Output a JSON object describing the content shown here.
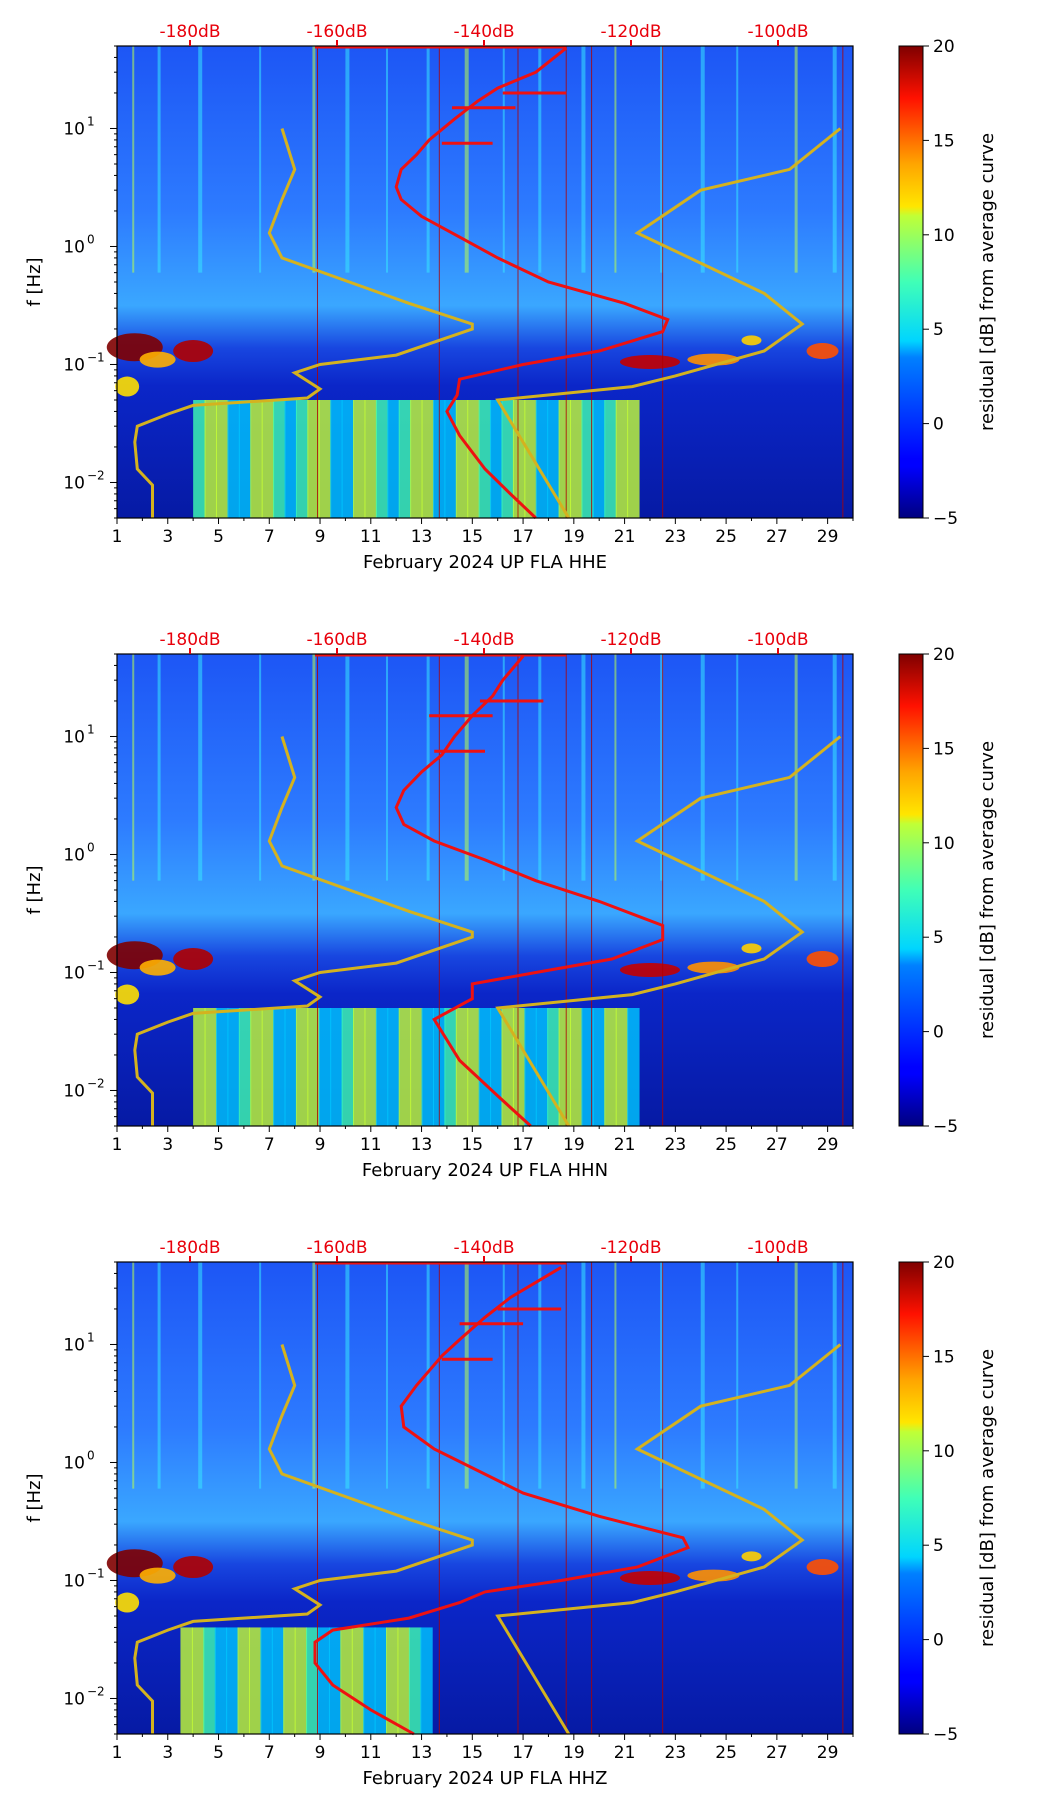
{
  "chart_data": [
    {
      "type": "heatmap",
      "channel": "HHE",
      "xlabel": "February 2024 UP FLA  HHE",
      "ylabel": "f [Hz]",
      "x_ticks": [
        "1",
        "3",
        "5",
        "7",
        "9",
        "11",
        "13",
        "15",
        "17",
        "19",
        "21",
        "23",
        "25",
        "27",
        "29"
      ],
      "x_range": [
        1,
        30
      ],
      "y_ticks": [
        {
          "exp": -2,
          "label": "10",
          "sup": "−2"
        },
        {
          "exp": -1,
          "label": "10",
          "sup": "−1"
        },
        {
          "exp": 0,
          "label": "10",
          "sup": "0"
        },
        {
          "exp": 1,
          "label": "10",
          "sup": "1"
        }
      ],
      "y_range_hz": [
        0.005,
        50
      ],
      "top_axis_ticks": [
        "-180dB",
        "-160dB",
        "-140dB",
        "-120dB",
        "-100dB"
      ],
      "colorbar": {
        "label": "residual [dB] from average curve",
        "range": [
          -5,
          20
        ],
        "ticks": [
          "20",
          "15",
          "10",
          "5",
          "0",
          "−5"
        ]
      },
      "yellow_noise_model": [
        [
          2.4,
          0.005
        ],
        [
          2.4,
          0.0095
        ],
        [
          1.8,
          0.013
        ],
        [
          1.7,
          0.022
        ],
        [
          1.8,
          0.03
        ],
        [
          3,
          0.038
        ],
        [
          4,
          0.045
        ],
        [
          8.5,
          0.052
        ],
        [
          9,
          0.062
        ],
        [
          8,
          0.085
        ],
        [
          9,
          0.1
        ],
        [
          12,
          0.12
        ],
        [
          15,
          0.2
        ],
        [
          15,
          0.22
        ],
        [
          12.5,
          0.33
        ],
        [
          7.5,
          0.8
        ],
        [
          7,
          1.3
        ],
        [
          7.5,
          2.5
        ],
        [
          8,
          4.5
        ],
        [
          7.5,
          10
        ]
      ],
      "yellow_noise_model_2": [
        [
          18.8,
          0.005
        ],
        [
          16,
          0.05
        ],
        [
          21.3,
          0.065
        ],
        [
          23,
          0.08
        ],
        [
          26.5,
          0.13
        ],
        [
          28,
          0.22
        ],
        [
          26.5,
          0.4
        ],
        [
          21.5,
          1.3
        ],
        [
          24,
          3
        ],
        [
          27.5,
          4.5
        ],
        [
          29.5,
          10
        ]
      ],
      "red_psd_curve": [
        [
          17.5,
          0.005
        ],
        [
          16.5,
          0.008
        ],
        [
          15.5,
          0.013
        ],
        [
          14.5,
          0.025
        ],
        [
          14,
          0.04
        ],
        [
          14.4,
          0.055
        ],
        [
          14.5,
          0.075
        ],
        [
          17,
          0.1
        ],
        [
          20,
          0.13
        ],
        [
          22.5,
          0.19
        ],
        [
          22.7,
          0.24
        ],
        [
          21,
          0.33
        ],
        [
          18,
          0.5
        ],
        [
          16,
          0.8
        ],
        [
          14.5,
          1.2
        ],
        [
          13,
          1.8
        ],
        [
          12.2,
          2.5
        ],
        [
          12,
          3.2
        ],
        [
          12.2,
          4.5
        ],
        [
          12.8,
          6
        ],
        [
          13.3,
          8
        ],
        [
          14.3,
          12
        ],
        [
          15.2,
          17
        ],
        [
          16,
          22
        ],
        [
          17.5,
          30
        ],
        [
          18.7,
          48
        ]
      ],
      "red_spikes": [
        [
          15.8,
          7.5
        ],
        [
          16.7,
          15
        ],
        [
          18.7,
          20
        ]
      ]
    },
    {
      "type": "heatmap",
      "channel": "HHN",
      "xlabel": "February 2024 UP FLA  HHN",
      "ylabel": "f [Hz]",
      "x_ticks": [
        "1",
        "3",
        "5",
        "7",
        "9",
        "11",
        "13",
        "15",
        "17",
        "19",
        "21",
        "23",
        "25",
        "27",
        "29"
      ],
      "x_range": [
        1,
        30
      ],
      "y_ticks": [
        {
          "exp": -2,
          "label": "10",
          "sup": "−2"
        },
        {
          "exp": -1,
          "label": "10",
          "sup": "−1"
        },
        {
          "exp": 0,
          "label": "10",
          "sup": "0"
        },
        {
          "exp": 1,
          "label": "10",
          "sup": "1"
        }
      ],
      "y_range_hz": [
        0.005,
        50
      ],
      "top_axis_ticks": [
        "-180dB",
        "-160dB",
        "-140dB",
        "-120dB",
        "-100dB"
      ],
      "colorbar": {
        "label": "residual [dB] from average curve",
        "range": [
          -5,
          20
        ],
        "ticks": [
          "20",
          "15",
          "10",
          "5",
          "0",
          "−5"
        ]
      },
      "yellow_noise_model": [
        [
          2.4,
          0.005
        ],
        [
          2.4,
          0.0095
        ],
        [
          1.8,
          0.013
        ],
        [
          1.7,
          0.022
        ],
        [
          1.8,
          0.03
        ],
        [
          3,
          0.038
        ],
        [
          4,
          0.045
        ],
        [
          8.5,
          0.052
        ],
        [
          9,
          0.062
        ],
        [
          8,
          0.085
        ],
        [
          9,
          0.1
        ],
        [
          12,
          0.12
        ],
        [
          15,
          0.2
        ],
        [
          15,
          0.22
        ],
        [
          12.5,
          0.33
        ],
        [
          7.5,
          0.8
        ],
        [
          7,
          1.3
        ],
        [
          7.5,
          2.5
        ],
        [
          8,
          4.5
        ],
        [
          7.5,
          10
        ]
      ],
      "yellow_noise_model_2": [
        [
          18.8,
          0.005
        ],
        [
          16,
          0.05
        ],
        [
          21.3,
          0.065
        ],
        [
          23,
          0.08
        ],
        [
          26.5,
          0.13
        ],
        [
          28,
          0.22
        ],
        [
          26.5,
          0.4
        ],
        [
          21.5,
          1.3
        ],
        [
          24,
          3
        ],
        [
          27.5,
          4.5
        ],
        [
          29.5,
          10
        ]
      ],
      "red_psd_curve": [
        [
          17.3,
          0.005
        ],
        [
          16,
          0.009
        ],
        [
          14.5,
          0.018
        ],
        [
          13.5,
          0.04
        ],
        [
          15,
          0.06
        ],
        [
          15,
          0.08
        ],
        [
          17.5,
          0.1
        ],
        [
          20.5,
          0.13
        ],
        [
          22.5,
          0.19
        ],
        [
          22.5,
          0.25
        ],
        [
          20,
          0.4
        ],
        [
          17.5,
          0.6
        ],
        [
          15.5,
          0.9
        ],
        [
          13.5,
          1.3
        ],
        [
          12.3,
          1.8
        ],
        [
          12,
          2.5
        ],
        [
          12.3,
          3.5
        ],
        [
          13,
          5
        ],
        [
          13.8,
          7
        ],
        [
          14.3,
          10
        ],
        [
          15,
          15
        ],
        [
          15.8,
          22
        ],
        [
          16.2,
          30
        ],
        [
          17,
          48
        ]
      ],
      "red_spikes": [
        [
          15.5,
          7.5
        ],
        [
          15.8,
          15
        ],
        [
          17.8,
          20
        ]
      ]
    },
    {
      "type": "heatmap",
      "channel": "HHZ",
      "xlabel": "February 2024 UP FLA  HHZ",
      "ylabel": "f [Hz]",
      "x_ticks": [
        "1",
        "3",
        "5",
        "7",
        "9",
        "11",
        "13",
        "15",
        "17",
        "19",
        "21",
        "23",
        "25",
        "27",
        "29"
      ],
      "x_range": [
        1,
        30
      ],
      "y_ticks": [
        {
          "exp": -2,
          "label": "10",
          "sup": "−2"
        },
        {
          "exp": -1,
          "label": "10",
          "sup": "−1"
        },
        {
          "exp": 0,
          "label": "10",
          "sup": "0"
        },
        {
          "exp": 1,
          "label": "10",
          "sup": "1"
        }
      ],
      "y_range_hz": [
        0.005,
        50
      ],
      "top_axis_ticks": [
        "-180dB",
        "-160dB",
        "-140dB",
        "-120dB",
        "-100dB"
      ],
      "colorbar": {
        "label": "residual [dB] from average curve",
        "range": [
          -5,
          20
        ],
        "ticks": [
          "20",
          "15",
          "10",
          "5",
          "0",
          "−5"
        ]
      },
      "yellow_noise_model": [
        [
          2.4,
          0.005
        ],
        [
          2.4,
          0.0095
        ],
        [
          1.8,
          0.013
        ],
        [
          1.7,
          0.022
        ],
        [
          1.8,
          0.03
        ],
        [
          3,
          0.038
        ],
        [
          4,
          0.045
        ],
        [
          8.5,
          0.052
        ],
        [
          9,
          0.062
        ],
        [
          8,
          0.085
        ],
        [
          9,
          0.1
        ],
        [
          12,
          0.12
        ],
        [
          15,
          0.2
        ],
        [
          15,
          0.22
        ],
        [
          12.5,
          0.33
        ],
        [
          7.5,
          0.8
        ],
        [
          7,
          1.3
        ],
        [
          7.5,
          2.5
        ],
        [
          8,
          4.5
        ],
        [
          7.5,
          10
        ]
      ],
      "yellow_noise_model_2": [
        [
          18.8,
          0.005
        ],
        [
          16,
          0.05
        ],
        [
          21.3,
          0.065
        ],
        [
          23,
          0.08
        ],
        [
          26.5,
          0.13
        ],
        [
          28,
          0.22
        ],
        [
          26.5,
          0.4
        ],
        [
          21.5,
          1.3
        ],
        [
          24,
          3
        ],
        [
          27.5,
          4.5
        ],
        [
          29.5,
          10
        ]
      ],
      "red_psd_curve": [
        [
          12.7,
          0.005
        ],
        [
          11,
          0.008
        ],
        [
          9.5,
          0.013
        ],
        [
          8.8,
          0.02
        ],
        [
          8.8,
          0.03
        ],
        [
          9.5,
          0.038
        ],
        [
          12.5,
          0.048
        ],
        [
          14.5,
          0.065
        ],
        [
          15.5,
          0.08
        ],
        [
          18.5,
          0.1
        ],
        [
          21.5,
          0.13
        ],
        [
          23.5,
          0.19
        ],
        [
          23.3,
          0.23
        ],
        [
          20,
          0.35
        ],
        [
          17,
          0.55
        ],
        [
          15,
          0.9
        ],
        [
          13.5,
          1.3
        ],
        [
          12.3,
          2
        ],
        [
          12.2,
          3
        ],
        [
          12.8,
          4.5
        ],
        [
          13.3,
          6
        ],
        [
          13.8,
          8
        ],
        [
          14.5,
          11
        ],
        [
          15.5,
          17
        ],
        [
          16.5,
          25
        ],
        [
          18.5,
          45
        ]
      ],
      "red_spikes": [
        [
          15.8,
          7.5
        ],
        [
          17,
          15
        ],
        [
          18.5,
          20
        ]
      ]
    }
  ]
}
